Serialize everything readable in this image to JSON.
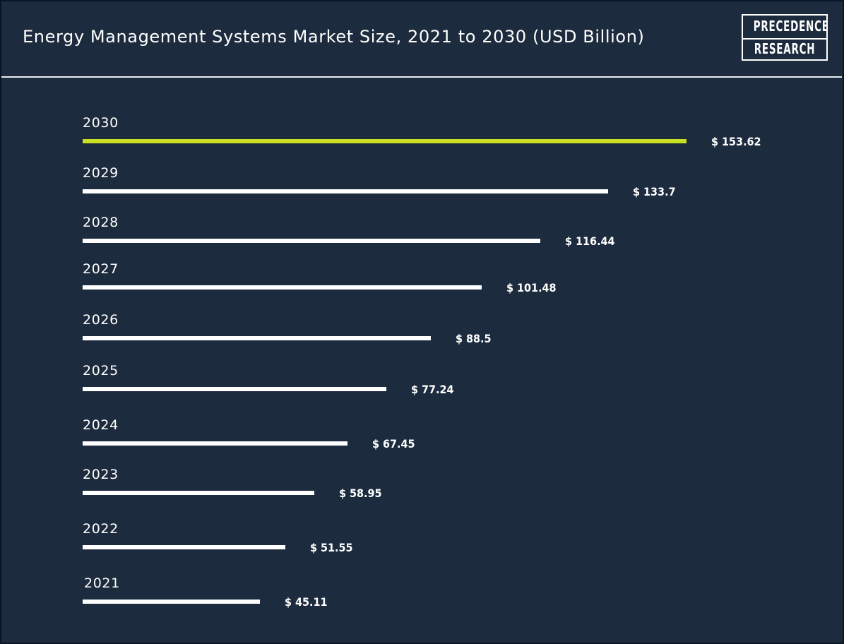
{
  "header": {
    "title": "Energy Management Systems Market Size, 2021 to 2030 (USD Billion)",
    "logo_line1": "PRECEDENCE",
    "logo_line2": "RESEARCH"
  },
  "colors": {
    "background": "#1c2b3d",
    "bar": "#ffffff",
    "highlight_bar": "#c8e021",
    "text": "#ffffff"
  },
  "chart_data": {
    "type": "bar",
    "orientation": "horizontal",
    "title": "Energy Management Systems Market Size, 2021 to 2030 (USD Billion)",
    "categories": [
      "2030",
      "2029",
      "2028",
      "2027",
      "2026",
      "2025",
      "2024",
      "2023",
      "2022",
      "2021"
    ],
    "values": [
      153.62,
      133.7,
      116.44,
      101.48,
      88.5,
      77.24,
      67.45,
      58.95,
      51.55,
      45.11
    ],
    "value_labels": [
      "$ 153.62",
      "$ 133.7",
      "$ 116.44",
      "$ 101.48",
      "$ 88.5",
      "$ 77.24",
      "$ 67.45",
      "$ 58.95",
      "$ 51.55",
      "$ 45.11"
    ],
    "highlight_category": "2030",
    "xlabel": "",
    "ylabel": "",
    "grid": false,
    "legend": "none"
  }
}
